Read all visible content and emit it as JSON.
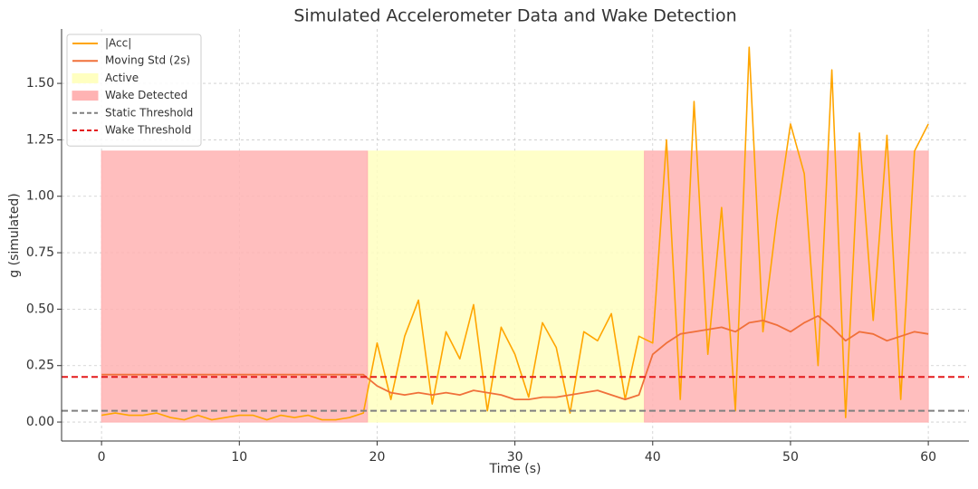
{
  "chart_data": {
    "type": "line",
    "title": "Simulated Accelerometer Data and Wake Detection",
    "xlabel": "Time (s)",
    "ylabel": "g (simulated)",
    "xlim": [
      -2.9,
      62.95
    ],
    "ylim": [
      -0.084,
      1.741
    ],
    "xticks": [
      0,
      10,
      20,
      30,
      40,
      50,
      60
    ],
    "yticks": [
      {
        "value": 0,
        "label": "0.00"
      },
      {
        "value": 0.25,
        "label": "0.25"
      },
      {
        "value": 0.5,
        "label": "0.50"
      },
      {
        "value": 0.75,
        "label": "0.75"
      },
      {
        "value": 1,
        "label": "1.00"
      },
      {
        "value": 1.25,
        "label": "1.25"
      },
      {
        "value": 1.5,
        "label": "1.50"
      }
    ],
    "grid": true,
    "legend": "upper left",
    "x": [
      0,
      1,
      2,
      3,
      4,
      5,
      6,
      7,
      8,
      9,
      10,
      11,
      12,
      13,
      14,
      15,
      16,
      17,
      18,
      19,
      20,
      21,
      22,
      23,
      24,
      25,
      26,
      27,
      28,
      29,
      30,
      31,
      32,
      33,
      34,
      35,
      36,
      37,
      38,
      39,
      40,
      41,
      42,
      43,
      44,
      45,
      46,
      47,
      48,
      49,
      50,
      51,
      52,
      53,
      54,
      55,
      56,
      57,
      58,
      59,
      60
    ],
    "series": [
      {
        "name": "|Acc|",
        "color": "#ffa500",
        "width": 1.6,
        "values": [
          0.03,
          0.04,
          0.03,
          0.03,
          0.04,
          0.02,
          0.01,
          0.03,
          0.01,
          0.02,
          0.03,
          0.03,
          0.01,
          0.03,
          0.02,
          0.03,
          0.01,
          0.01,
          0.02,
          0.04,
          0.35,
          0.1,
          0.38,
          0.54,
          0.08,
          0.4,
          0.28,
          0.52,
          0.05,
          0.42,
          0.3,
          0.11,
          0.44,
          0.33,
          0.04,
          0.4,
          0.36,
          0.48,
          0.1,
          0.38,
          0.35,
          1.25,
          0.1,
          1.42,
          0.3,
          0.95,
          0.05,
          1.66,
          0.4,
          0.9,
          1.32,
          1.1,
          0.25,
          1.56,
          0.02,
          1.28,
          0.45,
          1.27,
          0.1,
          1.2,
          1.32
        ]
      },
      {
        "name": "Moving Std (2s)",
        "color": "#f0703a",
        "width": 1.8,
        "values": [
          0.21,
          0.21,
          0.21,
          0.21,
          0.21,
          0.21,
          0.21,
          0.21,
          0.21,
          0.21,
          0.21,
          0.21,
          0.21,
          0.21,
          0.21,
          0.21,
          0.21,
          0.21,
          0.21,
          0.21,
          0.16,
          0.13,
          0.12,
          0.13,
          0.12,
          0.13,
          0.12,
          0.14,
          0.13,
          0.12,
          0.1,
          0.1,
          0.11,
          0.11,
          0.12,
          0.13,
          0.14,
          0.12,
          0.1,
          0.12,
          0.3,
          0.35,
          0.39,
          0.4,
          0.41,
          0.42,
          0.4,
          0.44,
          0.45,
          0.43,
          0.4,
          0.44,
          0.47,
          0.42,
          0.36,
          0.4,
          0.39,
          0.36,
          0.38,
          0.4,
          0.39
        ]
      }
    ],
    "shading": [
      {
        "name": "Active",
        "color": "#ffffc0",
        "spans": [
          [
            19.3,
            39.4
          ]
        ],
        "ymin": 0,
        "ymax": 1.2
      },
      {
        "name": "Wake Detected",
        "color": "#ffb3b3",
        "spans": [
          [
            0,
            19.3
          ],
          [
            39.4,
            60
          ]
        ],
        "ymin": 0,
        "ymax": 1.2
      }
    ],
    "thresholds": [
      {
        "name": "Static Threshold",
        "value": 0.05,
        "color": "#808080"
      },
      {
        "name": "Wake Threshold",
        "value": 0.2,
        "color": "#e41a1c"
      }
    ]
  }
}
